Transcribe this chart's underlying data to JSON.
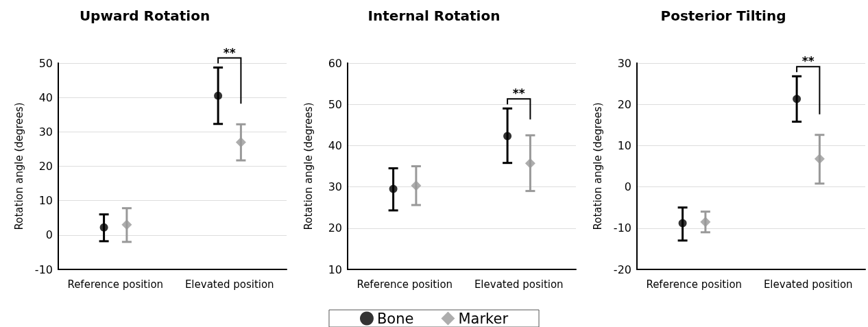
{
  "chart_data": [
    {
      "type": "scatter",
      "title": "Upward Rotation",
      "ylabel": "Rotation angle (degrees)",
      "categories": [
        "Reference position",
        "Elevated position"
      ],
      "series": [
        {
          "color": "#000000",
          "marker": "circle",
          "values": [
            2.2,
            40.5
          ],
          "errors": [
            [
              -1.8,
              6
            ],
            [
              32.3,
              48.7
            ]
          ]
        },
        {
          "color": "#999999",
          "marker": "diamond",
          "values": [
            3,
            27
          ],
          "errors": [
            [
              -2,
              7.8
            ],
            [
              21.7,
              32.2
            ]
          ]
        }
      ],
      "ylim": [
        -10,
        50
      ],
      "yticks": [
        -10,
        0,
        10,
        20,
        30,
        40,
        50
      ],
      "grid": "y",
      "legend": false,
      "annotations": [
        "**"
      ]
    },
    {
      "type": "scatter",
      "title": "Internal Rotation",
      "ylabel": "Rotation angle (degrees)",
      "categories": [
        "Reference position",
        "Elevated position"
      ],
      "series": [
        {
          "name": "Bone",
          "color": "#000000",
          "marker": "circle",
          "values": [
            29.5,
            42.3
          ],
          "errors": [
            [
              24.3,
              34.5
            ],
            [
              35.8,
              49
            ]
          ]
        },
        {
          "name": "Marker",
          "color": "#999999",
          "marker": "diamond",
          "values": [
            30.3,
            35.7
          ],
          "errors": [
            [
              25.6,
              35
            ],
            [
              29,
              42.5
            ]
          ]
        }
      ],
      "ylim": [
        10,
        60
      ],
      "yticks": [
        10,
        20,
        30,
        40,
        50,
        60
      ],
      "grid": "y",
      "legend": "bottom",
      "annotations": [
        "**"
      ]
    },
    {
      "type": "scatter",
      "title": "Posterior Tilting",
      "ylabel": "Rotation angle (degrees)",
      "categories": [
        "Reference position",
        "Elevated position"
      ],
      "series": [
        {
          "color": "#000000",
          "marker": "circle",
          "values": [
            -8.8,
            21.3
          ],
          "errors": [
            [
              -13,
              -5
            ],
            [
              15.8,
              26.8
            ]
          ]
        },
        {
          "color": "#999999",
          "marker": "diamond",
          "values": [
            -8.5,
            6.8
          ],
          "errors": [
            [
              -11,
              -6
            ],
            [
              0.8,
              12.6
            ]
          ]
        }
      ],
      "ylim": [
        -20,
        30
      ],
      "yticks": [
        -20,
        -10,
        0,
        10,
        20,
        30
      ],
      "grid": "y",
      "legend": false,
      "annotations": [
        "**"
      ]
    }
  ]
}
